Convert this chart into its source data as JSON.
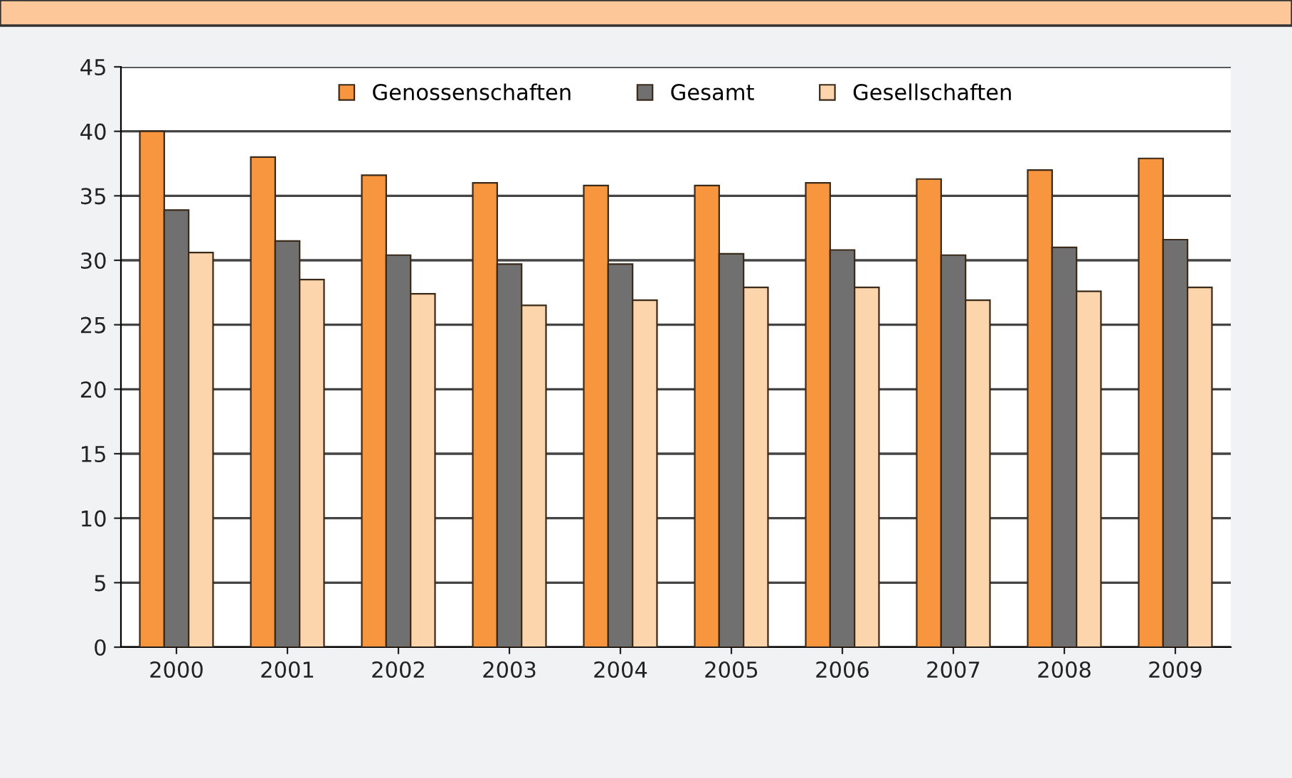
{
  "chart_data": {
    "type": "bar",
    "categories": [
      "2000",
      "2001",
      "2002",
      "2003",
      "2004",
      "2005",
      "2006",
      "2007",
      "2008",
      "2009"
    ],
    "series": [
      {
        "name": "Genossenschaften",
        "color": "#f7963e",
        "values": [
          40.0,
          38.0,
          36.6,
          36.0,
          35.8,
          35.8,
          36.0,
          36.3,
          37.0,
          37.9
        ]
      },
      {
        "name": "Gesamt",
        "color": "#707070",
        "values": [
          33.9,
          31.5,
          30.4,
          29.7,
          29.7,
          30.5,
          30.8,
          30.4,
          31.0,
          31.6
        ]
      },
      {
        "name": "Gesellschaften",
        "color": "#fdd5ad",
        "values": [
          30.6,
          28.5,
          27.4,
          26.5,
          26.9,
          27.9,
          27.9,
          26.9,
          27.6,
          27.9
        ]
      }
    ],
    "ylim": [
      0,
      45
    ],
    "yticks": [
      0,
      5,
      10,
      15,
      20,
      25,
      30,
      35,
      40,
      45
    ],
    "grid": "y",
    "legend": "top"
  }
}
